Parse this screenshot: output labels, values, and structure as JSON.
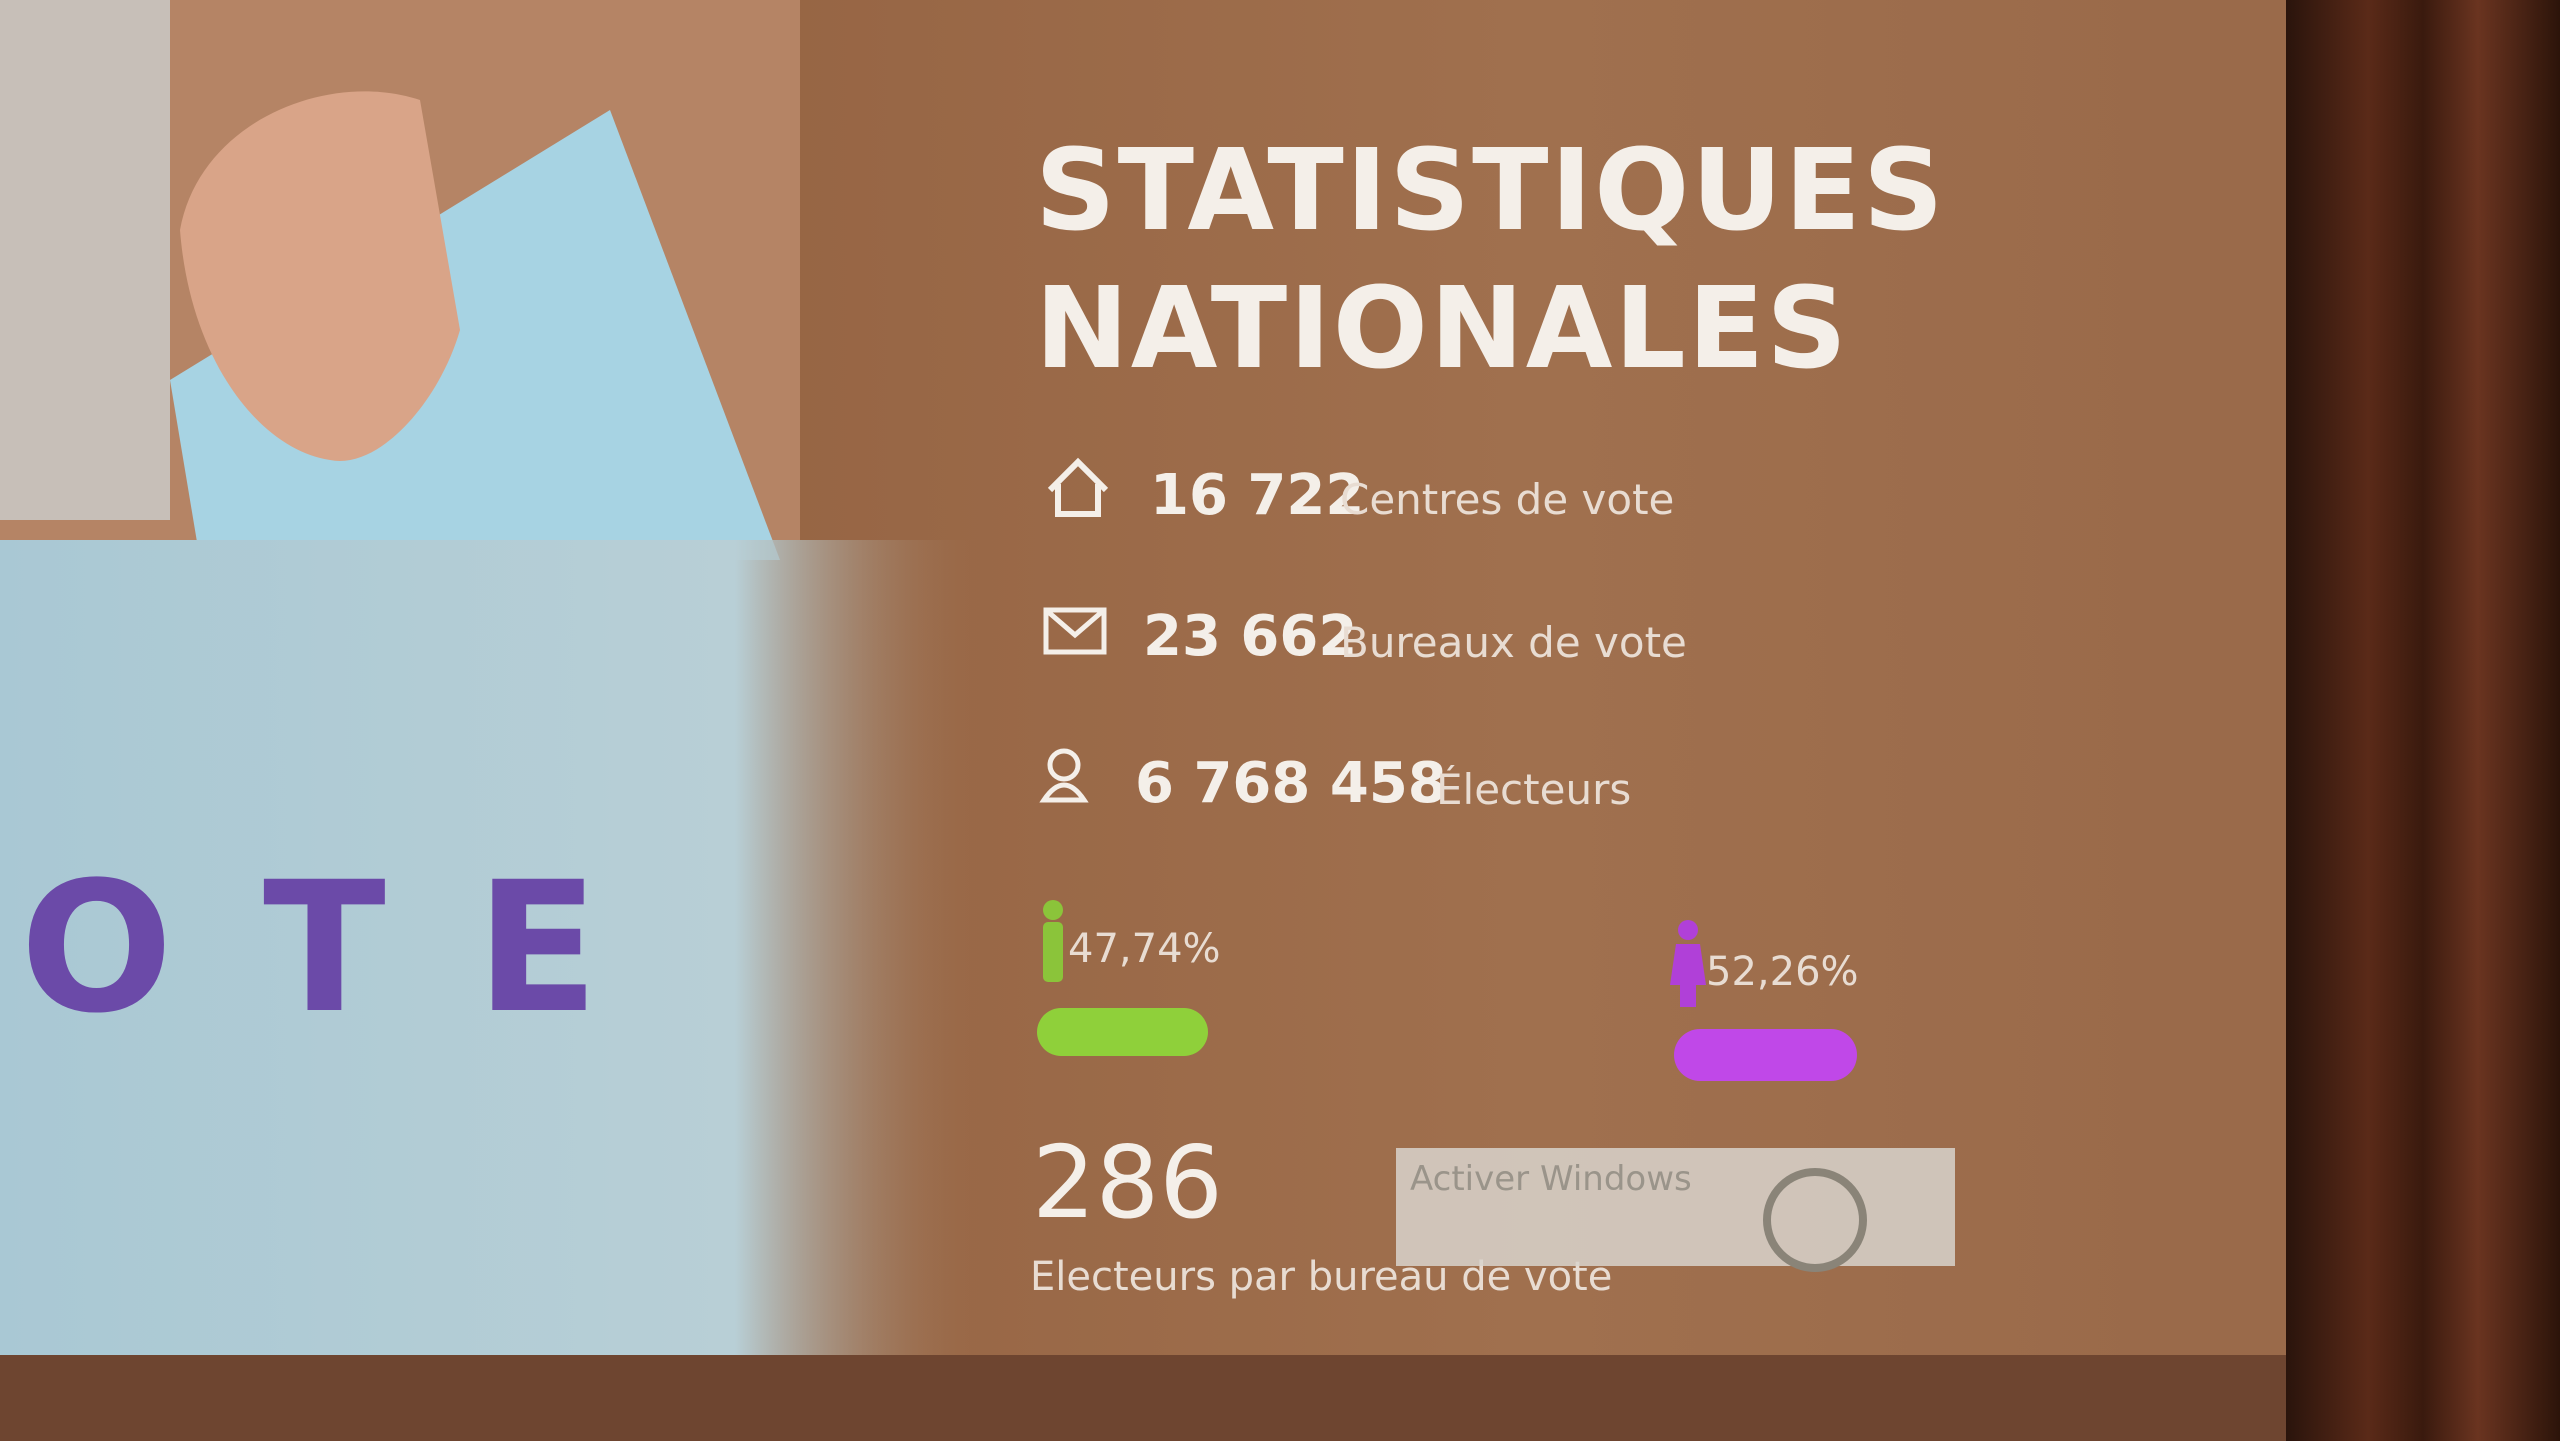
{
  "slide": {
    "banner": {
      "word": "OTE"
    },
    "title": {
      "line1": "STATISTIQUES",
      "line2": "NATIONALES"
    },
    "stats": [
      {
        "number": "16 722",
        "label": "Centres de vote"
      },
      {
        "number": "23 662",
        "label": "Bureaux de vote"
      },
      {
        "number": "6 768 458",
        "label": "Électeurs"
      }
    ],
    "gender": {
      "men": "47,74%",
      "women": "52,26%"
    },
    "ratio": {
      "number": "286",
      "label": "Electeurs par bureau de vote"
    },
    "watermark": "Activer Windows"
  }
}
